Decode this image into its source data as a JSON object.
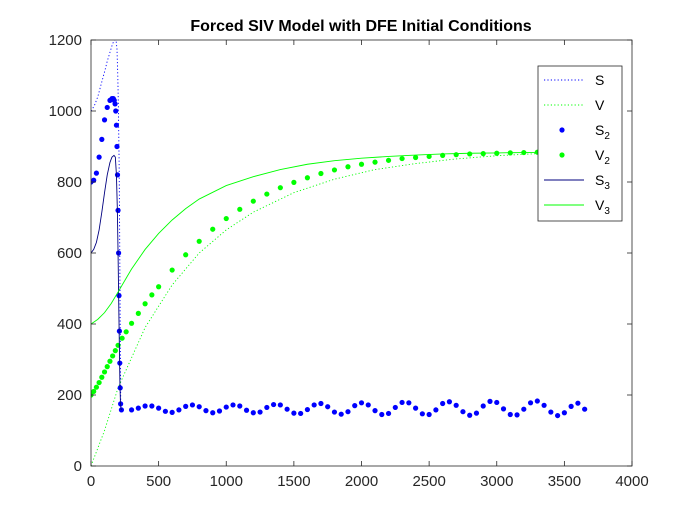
{
  "chart_data": {
    "type": "line",
    "title": "Forced SIV Model with DFE Initial Conditions",
    "xlabel": "",
    "ylabel": "",
    "xlim": [
      0,
      4000
    ],
    "ylim": [
      0,
      1200
    ],
    "xticks": [
      0,
      500,
      1000,
      1500,
      2000,
      2500,
      3000,
      3500,
      4000
    ],
    "yticks": [
      0,
      200,
      400,
      600,
      800,
      1000,
      1200
    ],
    "grid": false,
    "legend_position": "top-right",
    "series": [
      {
        "name": "S",
        "sub": "",
        "style": "dotted",
        "color": "#0000ff",
        "x": [
          0,
          25,
          50,
          75,
          100,
          120,
          140,
          160,
          175,
          185,
          192,
          198,
          203,
          208,
          212,
          215,
          218,
          220,
          225,
          240
        ],
        "y": [
          1000,
          1015,
          1040,
          1075,
          1110,
          1140,
          1165,
          1190,
          1200,
          1200,
          1175,
          1100,
          1000,
          850,
          650,
          450,
          280,
          170,
          158,
          160
        ]
      },
      {
        "name": "V",
        "sub": "",
        "style": "dotted",
        "color": "#00ff00",
        "x": [
          0,
          100,
          200,
          400,
          600,
          800,
          1000,
          1200,
          1500,
          1800,
          2100,
          2400,
          2700,
          3000,
          3300,
          3650
        ],
        "y": [
          0,
          100,
          220,
          390,
          510,
          600,
          665,
          715,
          770,
          808,
          835,
          852,
          865,
          874,
          880,
          884
        ]
      },
      {
        "name": "S",
        "sub": "2",
        "style": "dots",
        "color": "#0000ff",
        "x": [
          0,
          20,
          40,
          60,
          80,
          100,
          120,
          140,
          155,
          165,
          172,
          178,
          183,
          188,
          192,
          196,
          200,
          204,
          207,
          210,
          213,
          216,
          219,
          225,
          300,
          350,
          400,
          450,
          500,
          550,
          600,
          650,
          700,
          750,
          800,
          850,
          900,
          950,
          1000,
          1050,
          1100,
          1150,
          1200,
          1250,
          1300,
          1350,
          1400,
          1450,
          1500,
          1550,
          1600,
          1650,
          1700,
          1750,
          1800,
          1850,
          1900,
          1950,
          2000,
          2050,
          2100,
          2150,
          2200,
          2250,
          2300,
          2350,
          2400,
          2450,
          2500,
          2550,
          2600,
          2650,
          2700,
          2750,
          2800,
          2850,
          2900,
          2950,
          3000,
          3050,
          3100,
          3150,
          3200,
          3250,
          3300,
          3350,
          3400,
          3450,
          3500,
          3550,
          3600,
          3650
        ],
        "y": [
          800,
          805,
          825,
          870,
          920,
          975,
          1010,
          1030,
          1035,
          1035,
          1030,
          1020,
          1000,
          960,
          900,
          820,
          720,
          600,
          480,
          380,
          290,
          220,
          175,
          158,
          158,
          163,
          169,
          169,
          163,
          154,
          151,
          158,
          168,
          172,
          167,
          156,
          150,
          155,
          166,
          172,
          169,
          157,
          150,
          152,
          165,
          173,
          172,
          160,
          149,
          148,
          159,
          172,
          176,
          167,
          152,
          146,
          153,
          170,
          178,
          172,
          156,
          145,
          148,
          165,
          179,
          178,
          163,
          147,
          145,
          158,
          176,
          181,
          171,
          153,
          143,
          149,
          169,
          182,
          179,
          161,
          145,
          144,
          160,
          178,
          183,
          171,
          152,
          142,
          150,
          168,
          177,
          160
        ]
      },
      {
        "name": "V",
        "sub": "2",
        "style": "dots",
        "color": "#00ff00",
        "x": [
          0,
          20,
          40,
          60,
          80,
          100,
          120,
          140,
          160,
          180,
          200,
          230,
          260,
          300,
          350,
          400,
          450,
          500,
          600,
          700,
          800,
          900,
          1000,
          1100,
          1200,
          1300,
          1400,
          1500,
          1600,
          1700,
          1800,
          1900,
          2000,
          2100,
          2200,
          2300,
          2400,
          2500,
          2600,
          2700,
          2800,
          2900,
          3000,
          3100,
          3200,
          3300,
          3400,
          3500,
          3600,
          3650
        ],
        "y": [
          200,
          210,
          222,
          235,
          250,
          265,
          280,
          295,
          310,
          325,
          340,
          360,
          378,
          402,
          430,
          457,
          482,
          505,
          552,
          595,
          633,
          667,
          697,
          723,
          746,
          766,
          784,
          799,
          812,
          824,
          834,
          843,
          850,
          856,
          861,
          866,
          869,
          872,
          875,
          877,
          879,
          880,
          881,
          882,
          883,
          884,
          884,
          885,
          885,
          885
        ]
      },
      {
        "name": "S",
        "sub": "3",
        "style": "solid",
        "color": "#00007f",
        "x": [
          0,
          20,
          40,
          60,
          80,
          100,
          120,
          140,
          155,
          170,
          180,
          188,
          195,
          200,
          205,
          210,
          214,
          218,
          222,
          230
        ],
        "y": [
          600,
          610,
          630,
          665,
          715,
          770,
          820,
          855,
          870,
          875,
          870,
          820,
          720,
          600,
          460,
          330,
          230,
          175,
          160,
          158
        ]
      },
      {
        "name": "V",
        "sub": "3",
        "style": "solid",
        "color": "#00ff00",
        "x": [
          0,
          50,
          100,
          150,
          200,
          300,
          400,
          500,
          600,
          700,
          800,
          1000,
          1200,
          1400,
          1600,
          1800,
          2000,
          2200,
          2400,
          2600,
          2800,
          3000,
          3200,
          3400,
          3650
        ],
        "y": [
          400,
          413,
          432,
          458,
          490,
          555,
          610,
          655,
          693,
          725,
          752,
          790,
          815,
          835,
          850,
          860,
          867,
          872,
          876,
          879,
          881,
          882,
          883,
          884,
          885
        ]
      }
    ]
  }
}
